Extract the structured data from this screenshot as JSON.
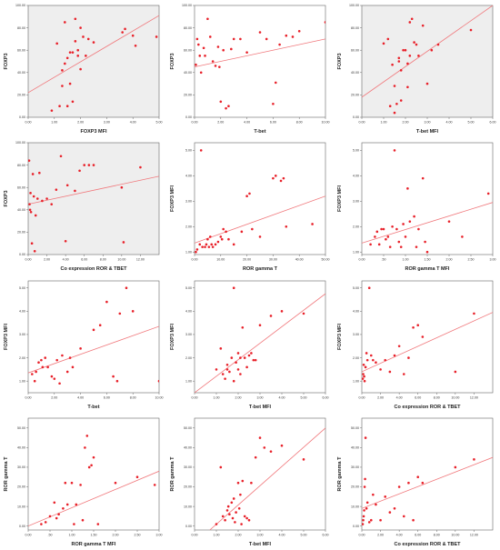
{
  "style": {
    "point_color": "#e8212a",
    "line_color": "#f0777b",
    "plot_bg_gray": "#eeeeee",
    "plot_bg_white": "#ffffff",
    "frame_color": "#666666"
  },
  "chart_data": [
    {
      "type": "scatter",
      "xlabel": "FOXP3 MFI",
      "ylabel": "FOXP3",
      "bg": "gray",
      "xlim": [
        0,
        5
      ],
      "ylim": [
        0,
        100
      ],
      "xticks": [
        "0.00",
        "1.00",
        "2.00",
        "3.00",
        "4.00",
        "5.00"
      ],
      "yticks": [
        "0.00",
        "20.00",
        "40.00",
        "60.00",
        "80.00",
        "100.00"
      ],
      "x": [
        0.9,
        1.1,
        1.2,
        1.3,
        1.3,
        1.4,
        1.4,
        1.5,
        1.5,
        1.6,
        1.6,
        1.7,
        1.7,
        1.8,
        1.8,
        1.9,
        1.9,
        2.0,
        2.0,
        2.1,
        2.2,
        2.3,
        2.5,
        3.6,
        3.7,
        4.0,
        4.1,
        4.9
      ],
      "y": [
        6,
        66,
        10,
        28,
        42,
        48,
        85,
        10,
        53,
        30,
        58,
        14,
        58,
        68,
        88,
        55,
        60,
        43,
        80,
        72,
        55,
        70,
        67,
        76,
        79,
        73,
        64,
        72
      ],
      "fit": [
        [
          0,
          22
        ],
        [
          5,
          91
        ]
      ]
    },
    {
      "type": "scatter",
      "xlabel": "T-bet",
      "ylabel": "FOXP3",
      "bg": "white",
      "xlim": [
        0,
        10
      ],
      "ylim": [
        0,
        100
      ],
      "xticks": [
        "0.00",
        "2.00",
        "4.00",
        "6.00",
        "8.00",
        "10.00"
      ],
      "yticks": [
        "0.00",
        "20.00",
        "40.00",
        "60.00",
        "80.00",
        "100.00"
      ],
      "x": [
        0.1,
        0.2,
        0.3,
        0.4,
        0.5,
        0.7,
        0.8,
        1.0,
        1.2,
        1.4,
        1.6,
        1.8,
        1.9,
        2.0,
        2.2,
        2.4,
        2.6,
        2.8,
        3.0,
        3.5,
        4.0,
        5.0,
        5.5,
        6.0,
        6.2,
        6.5,
        7.0,
        7.5,
        8.0,
        10.0
      ],
      "y": [
        47,
        70,
        65,
        55,
        40,
        62,
        55,
        88,
        72,
        50,
        46,
        63,
        45,
        14,
        60,
        8,
        10,
        61,
        70,
        70,
        58,
        76,
        70,
        12,
        31,
        65,
        73,
        72,
        77,
        85
      ],
      "fit": [
        [
          0,
          45
        ],
        [
          10,
          70
        ]
      ]
    },
    {
      "type": "scatter",
      "xlabel": "T-bet MFI",
      "ylabel": "FOXP3",
      "bg": "gray",
      "xlim": [
        0,
        6
      ],
      "ylim": [
        0,
        100
      ],
      "xticks": [
        "0.00",
        "1.00",
        "2.00",
        "3.00",
        "4.00",
        "5.00",
        "6.00"
      ],
      "yticks": [
        "0.00",
        "20.00",
        "40.00",
        "60.00",
        "80.00",
        "100.00"
      ],
      "x": [
        1.0,
        1.2,
        1.3,
        1.4,
        1.5,
        1.5,
        1.6,
        1.7,
        1.7,
        1.8,
        1.8,
        1.9,
        2.0,
        2.1,
        2.1,
        2.2,
        2.2,
        2.3,
        2.4,
        2.5,
        2.6,
        2.8,
        3.0,
        3.2,
        3.5,
        5.0
      ],
      "y": [
        66,
        70,
        10,
        47,
        4,
        28,
        12,
        50,
        53,
        15,
        42,
        60,
        60,
        27,
        48,
        55,
        85,
        88,
        67,
        65,
        55,
        82,
        30,
        60,
        65,
        78
      ],
      "fit": [
        [
          0,
          18
        ],
        [
          6,
          100
        ]
      ]
    },
    {
      "type": "scatter",
      "xlabel": "Co expression ROR & TBET",
      "ylabel": "FOXP3",
      "bg": "gray",
      "xlim": [
        0,
        14
      ],
      "ylim": [
        0,
        100
      ],
      "xticks": [
        "0.00",
        "2.00",
        "4.00",
        "6.00",
        "8.00",
        "10.00",
        "12.00"
      ],
      "yticks": [
        "0.00",
        "20.00",
        "40.00",
        "60.00",
        "80.00",
        "100.00"
      ],
      "x": [
        0.1,
        0.15,
        0.2,
        0.25,
        0.3,
        0.4,
        0.5,
        0.6,
        0.7,
        0.8,
        1.0,
        1.2,
        1.5,
        2.0,
        2.5,
        3.0,
        3.5,
        4.0,
        4.2,
        5.0,
        5.5,
        6.0,
        6.5,
        7.0,
        10.0,
        10.2,
        12.0
      ],
      "y": [
        84,
        45,
        40,
        55,
        38,
        10,
        72,
        52,
        3,
        35,
        50,
        73,
        48,
        50,
        45,
        58,
        88,
        12,
        62,
        57,
        75,
        80,
        80,
        80,
        60,
        11,
        78
      ],
      "fit": [
        [
          0,
          45
        ],
        [
          14,
          70
        ]
      ]
    },
    {
      "type": "scatter",
      "xlabel": "ROR gamma T",
      "ylabel": "FOXP3 MFI",
      "bg": "white",
      "xlim": [
        0,
        50
      ],
      "ylim": [
        0.9,
        5.3
      ],
      "xticks": [
        "0.00",
        "10.00",
        "20.00",
        "30.00",
        "40.00",
        "50.00"
      ],
      "yticks": [
        "1.00",
        "2.00",
        "3.00",
        "4.00",
        "5.00"
      ],
      "x": [
        0.5,
        1,
        2,
        2.5,
        3,
        4,
        4.5,
        5,
        5.5,
        6,
        6.5,
        7,
        8,
        9,
        10,
        10.5,
        11,
        12,
        13,
        15,
        18,
        20,
        21,
        22,
        25,
        30,
        31,
        33,
        34,
        35,
        45
      ],
      "y": [
        1.0,
        1.1,
        1.3,
        5.0,
        1.2,
        1.2,
        1.3,
        1.5,
        1.2,
        1.6,
        1.3,
        1.2,
        1.3,
        1.4,
        1.6,
        1.5,
        1.9,
        1.8,
        1.5,
        1.3,
        1.8,
        3.2,
        3.3,
        1.9,
        1.6,
        3.9,
        4.0,
        3.8,
        3.9,
        2.0,
        2.1
      ],
      "fit": [
        [
          0,
          1.35
        ],
        [
          50,
          3.2
        ]
      ]
    },
    {
      "type": "scatter",
      "xlabel": "ROR gamma T MFI",
      "ylabel": "FOXP3 MFI",
      "bg": "white",
      "xlim": [
        0,
        3
      ],
      "ylim": [
        0.9,
        5.3
      ],
      "xticks": [
        "0.00",
        ".50",
        "1.00",
        "1.50",
        "2.00",
        "2.50",
        "3.00"
      ],
      "yticks": [
        "1.00",
        "2.00",
        "3.00",
        "4.00",
        "5.00"
      ],
      "x": [
        0.2,
        0.3,
        0.35,
        0.4,
        0.45,
        0.5,
        0.55,
        0.6,
        0.65,
        0.7,
        0.75,
        0.8,
        0.85,
        0.9,
        0.95,
        1.0,
        1.05,
        1.1,
        1.2,
        1.25,
        1.3,
        1.4,
        1.45,
        1.5,
        2.0,
        2.3,
        2.9
      ],
      "y": [
        1.3,
        1.6,
        1.8,
        1.3,
        1.9,
        1.9,
        1.5,
        1.6,
        1.2,
        2.0,
        5.0,
        1.9,
        1.4,
        1.2,
        2.1,
        1.6,
        3.5,
        2.2,
        2.4,
        1.2,
        1.9,
        3.9,
        1.4,
        1.0,
        2.2,
        1.6,
        3.3
      ],
      "fit": [
        [
          0,
          1.35
        ],
        [
          3,
          2.95
        ]
      ]
    },
    {
      "type": "scatter",
      "xlabel": "T-bet",
      "ylabel": "FOXP3 MFI",
      "bg": "white",
      "xlim": [
        0,
        10
      ],
      "ylim": [
        0.5,
        5.3
      ],
      "xticks": [
        "0.00",
        "2.00",
        "4.00",
        "6.00",
        "8.00",
        "10.00"
      ],
      "yticks": [
        "1.00",
        "2.00",
        "3.00",
        "4.00",
        "5.00"
      ],
      "x": [
        0.3,
        0.5,
        0.6,
        0.8,
        1.0,
        1.1,
        1.3,
        1.5,
        1.8,
        2.0,
        2.2,
        2.4,
        2.6,
        3.0,
        3.2,
        3.4,
        4.0,
        5.0,
        5.5,
        6.0,
        6.5,
        6.8,
        7.0,
        7.5,
        8.0,
        10.0
      ],
      "y": [
        1.3,
        1.0,
        1.4,
        1.8,
        1.9,
        1.6,
        2.0,
        1.6,
        1.2,
        1.1,
        1.9,
        0.9,
        2.1,
        1.4,
        2.0,
        1.6,
        2.4,
        3.2,
        3.4,
        4.4,
        1.2,
        1.0,
        3.9,
        5.0,
        4.0,
        1.0
      ],
      "fit": [
        [
          0,
          1.35
        ],
        [
          10,
          3.35
        ]
      ]
    },
    {
      "type": "scatter",
      "xlabel": "T-bet MFI",
      "ylabel": "FOXP3 MFI",
      "bg": "white",
      "xlim": [
        0,
        6
      ],
      "ylim": [
        0.5,
        5.3
      ],
      "xticks": [
        "0.00",
        "1.00",
        "2.00",
        "3.00",
        "4.00",
        "5.00",
        "6.00"
      ],
      "yticks": [
        "1.00",
        "2.00",
        "3.00",
        "4.00",
        "5.00"
      ],
      "x": [
        1.0,
        1.2,
        1.3,
        1.4,
        1.5,
        1.5,
        1.6,
        1.7,
        1.8,
        1.8,
        1.9,
        2.0,
        2.0,
        2.1,
        2.1,
        2.2,
        2.3,
        2.4,
        2.5,
        2.6,
        2.7,
        2.8,
        3.0,
        3.5,
        4.0,
        5.0
      ],
      "y": [
        1.5,
        2.4,
        1.3,
        1.1,
        1.5,
        1.7,
        1.4,
        2.0,
        1.0,
        5.0,
        1.8,
        2.2,
        1.5,
        2.0,
        1.3,
        3.3,
        2.0,
        1.6,
        2.1,
        2.2,
        1.9,
        1.9,
        3.4,
        3.8,
        4.0,
        3.9
      ],
      "fit": [
        [
          0,
          0.5
        ],
        [
          6,
          4.75
        ]
      ]
    },
    {
      "type": "scatter",
      "xlabel": "Co expression ROR & TBET",
      "ylabel": "FOXP3 MFI",
      "bg": "white",
      "xlim": [
        0,
        14
      ],
      "ylim": [
        0.5,
        5.3
      ],
      "xticks": [
        "0.00",
        "2.00",
        "4.00",
        "6.00",
        "8.00",
        "10.00",
        "12.00"
      ],
      "yticks": [
        "1.00",
        "2.00",
        "3.00",
        "4.00",
        "5.00"
      ],
      "x": [
        0.1,
        0.15,
        0.2,
        0.25,
        0.3,
        0.4,
        0.5,
        0.6,
        0.8,
        1.0,
        1.2,
        1.5,
        2.0,
        2.5,
        3.0,
        3.5,
        4.0,
        4.5,
        5.0,
        5.5,
        6.0,
        6.5,
        10.0,
        12.0
      ],
      "y": [
        1.1,
        1.3,
        1.7,
        1.2,
        1.0,
        1.6,
        2.2,
        1.9,
        5.0,
        2.1,
        1.9,
        1.8,
        1.5,
        1.9,
        1.4,
        2.1,
        2.5,
        1.3,
        2.0,
        3.3,
        3.4,
        2.9,
        1.4,
        3.9
      ],
      "fit": [
        [
          0,
          1.4
        ],
        [
          14,
          3.95
        ]
      ]
    },
    {
      "type": "scatter",
      "xlabel": "ROR gamma T MFI",
      "ylabel": "ROR gamma T",
      "bg": "white",
      "xlim": [
        0,
        3
      ],
      "ylim": [
        -2,
        55
      ],
      "xticks": [
        "0.00",
        ".50",
        "1.00",
        "1.50",
        "2.00",
        "2.50",
        "3.00"
      ],
      "yticks": [
        "0.00",
        "10.00",
        "20.00",
        "30.00",
        "40.00",
        "50.00"
      ],
      "x": [
        0.3,
        0.4,
        0.5,
        0.6,
        0.65,
        0.7,
        0.8,
        0.85,
        0.9,
        1.0,
        1.05,
        1.1,
        1.2,
        1.25,
        1.3,
        1.35,
        1.4,
        1.45,
        1.5,
        1.6,
        2.0,
        2.5,
        2.9
      ],
      "y": [
        1,
        2,
        5,
        12,
        4,
        6,
        9,
        22,
        11,
        22,
        1,
        11,
        21,
        3,
        40,
        46,
        30,
        31,
        35,
        1,
        22,
        25,
        21
      ],
      "fit": [
        [
          0,
          0
        ],
        [
          3,
          28
        ]
      ]
    },
    {
      "type": "scatter",
      "xlabel": "T-bet MFI",
      "ylabel": "ROR gamma T",
      "bg": "white",
      "xlim": [
        0,
        6
      ],
      "ylim": [
        -2,
        55
      ],
      "xticks": [
        "0.00",
        "1.00",
        "2.00",
        "3.00",
        "4.00",
        "5.00",
        "6.00"
      ],
      "yticks": [
        "0.00",
        "10.00",
        "20.00",
        "30.00",
        "40.00",
        "50.00"
      ],
      "x": [
        1.0,
        1.2,
        1.3,
        1.4,
        1.5,
        1.55,
        1.6,
        1.7,
        1.75,
        1.8,
        1.85,
        1.9,
        2.0,
        2.05,
        2.1,
        2.15,
        2.2,
        2.3,
        2.4,
        2.5,
        2.6,
        2.8,
        3.0,
        3.2,
        3.5,
        4.0,
        5.0
      ],
      "y": [
        1,
        30,
        5,
        3,
        8,
        10,
        6,
        12,
        4,
        14,
        2,
        7,
        22,
        9,
        16,
        1,
        23,
        5,
        4,
        3,
        22,
        35,
        45,
        40,
        38,
        41,
        34
      ],
      "fit": [
        [
          0.7,
          -2
        ],
        [
          6,
          50
        ]
      ]
    },
    {
      "type": "scatter",
      "xlabel": "Co expression ROR & TBET",
      "ylabel": "ROR gamma T",
      "bg": "white",
      "xlim": [
        0,
        14
      ],
      "ylim": [
        -2,
        55
      ],
      "xticks": [
        "0.00",
        "2.00",
        "4.00",
        "6.00",
        "8.00",
        "10.00",
        "12.00"
      ],
      "yticks": [
        "0.00",
        "10.00",
        "20.00",
        "30.00",
        "40.00",
        "50.00"
      ],
      "x": [
        0.1,
        0.15,
        0.2,
        0.25,
        0.3,
        0.35,
        0.4,
        0.5,
        0.6,
        0.8,
        1.0,
        1.2,
        1.5,
        2.0,
        2.5,
        3.0,
        3.5,
        4.0,
        4.5,
        5.0,
        5.5,
        6.0,
        6.5,
        10.0,
        12.0
      ],
      "y": [
        1,
        3,
        5,
        8,
        20,
        24,
        45,
        9,
        12,
        2,
        3,
        16,
        11,
        3,
        15,
        7,
        9,
        20,
        5,
        22,
        3,
        25,
        22,
        30,
        34
      ],
      "fit": [
        [
          0,
          9
        ],
        [
          14,
          35
        ]
      ]
    }
  ]
}
